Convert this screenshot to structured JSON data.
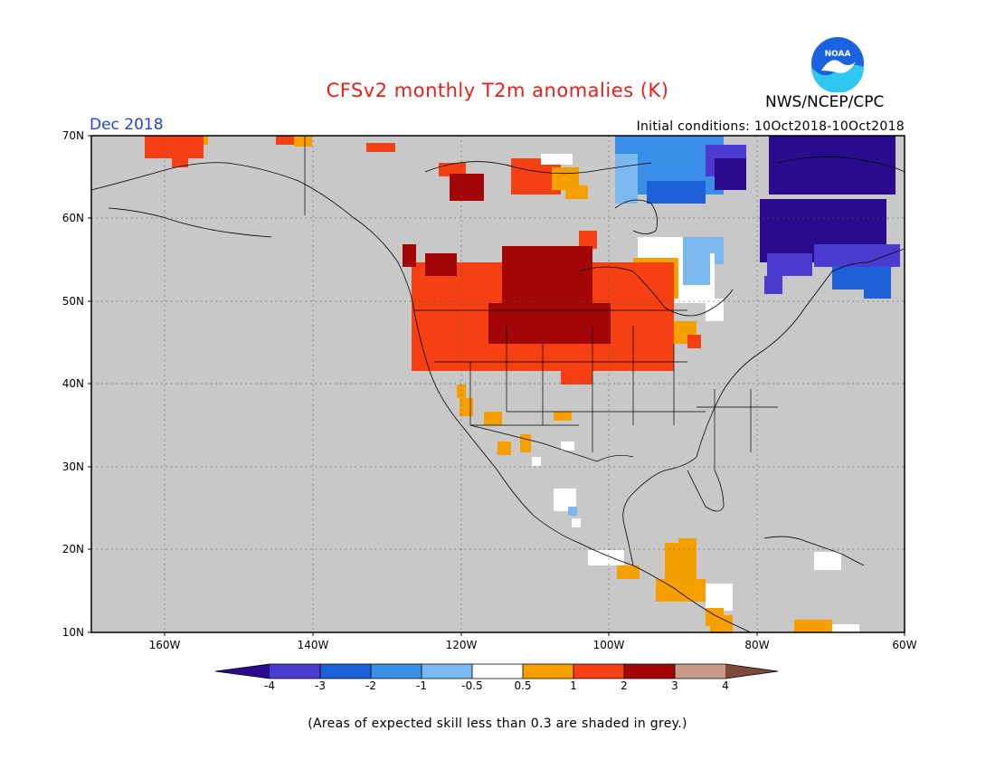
{
  "title": "CFSv2 monthly T2m anomalies (K)",
  "month": "Dec 2018",
  "initial_conditions": "Initial conditions: 10Oct2018-10Oct2018",
  "agency": "NWS/NCEP/CPC",
  "logo_text": "NOAA",
  "lat_labels": [
    "70N",
    "60N",
    "50N",
    "40N",
    "30N",
    "20N",
    "10N"
  ],
  "lon_labels": [
    "160W",
    "140W",
    "120W",
    "100W",
    "80W",
    "60W"
  ],
  "colorbar": {
    "ticks": [
      "-4",
      "-3",
      "-2",
      "-1",
      "-0.5",
      "0.5",
      "1",
      "2",
      "3",
      "4"
    ],
    "colors": [
      "#2a0b8e",
      "#4b3bd0",
      "#1e60d8",
      "#3a8ee8",
      "#7bb8f0",
      "#ffffff",
      "#f5a000",
      "#f44012",
      "#a30606",
      "#c79a8a",
      "#7a4a3a"
    ]
  },
  "note": "(Areas of expected skill less than 0.3 are shaded in grey.)",
  "map_background": "#c8c8c8"
}
